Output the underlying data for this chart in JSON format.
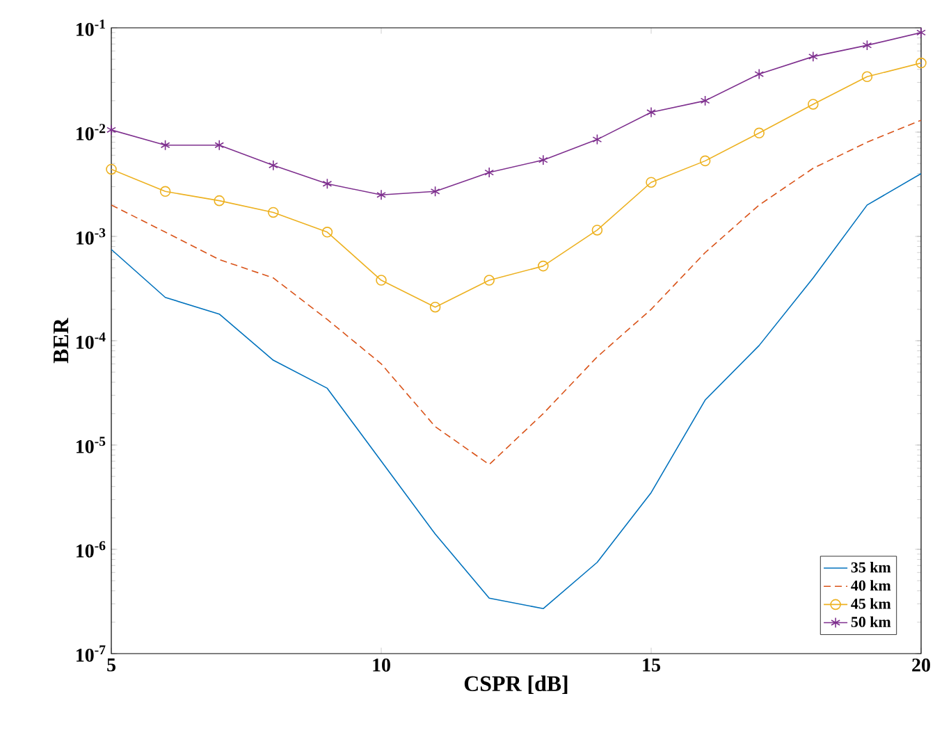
{
  "chart_data": {
    "type": "line",
    "xlabel": "CSPR [dB]",
    "ylabel": "BER",
    "log": "y",
    "legend": "bottom right",
    "grid": false,
    "x": [
      5,
      6,
      7,
      8,
      9,
      10,
      11,
      12,
      13,
      14,
      15,
      16,
      17,
      18,
      19,
      20
    ],
    "xlim": [
      5,
      20
    ],
    "xticks": [
      5,
      10,
      15,
      20
    ],
    "ylim": [
      1e-07,
      0.1
    ],
    "yticks": [
      {
        "value": 1e-07,
        "label": "10$^{-7}$"
      },
      {
        "value": 1e-06,
        "label": "10$^{-6}$"
      },
      {
        "value": 1e-05,
        "label": "10$^{-5}$"
      },
      {
        "value": 0.0001,
        "label": "10$^{-4}$"
      },
      {
        "value": 0.001,
        "label": "10$^{-3}$"
      },
      {
        "value": 0.01,
        "label": "10$^{-2}$"
      },
      {
        "value": 0.1,
        "label": "10$^{-1}$"
      }
    ],
    "series": [
      {
        "name": "35 km",
        "color": "#0072bd",
        "line_style": "solid",
        "marker": "none",
        "values": [
          0.00075,
          0.00026,
          0.00018,
          6.5e-05,
          3.5e-05,
          7e-06,
          1.4e-06,
          3.4e-07,
          2.7e-07,
          7.5e-07,
          3.5e-06,
          2.7e-05,
          9e-05,
          0.0004,
          0.002,
          0.004
        ]
      },
      {
        "name": "40 km",
        "color": "#d95319",
        "line_style": "dashed",
        "marker": "none",
        "values": [
          0.002,
          0.0011,
          0.0006,
          0.0004,
          0.00016,
          6e-05,
          1.5e-05,
          6.5e-06,
          2e-05,
          7e-05,
          0.0002,
          0.0007,
          0.002,
          0.0045,
          0.008,
          0.013
        ]
      },
      {
        "name": "45 km",
        "color": "#edb120",
        "line_style": "solid",
        "marker": "circle",
        "values": [
          0.0044,
          0.0027,
          0.0022,
          0.0017,
          0.0011,
          0.00038,
          0.00021,
          0.00038,
          0.00052,
          0.00115,
          0.0033,
          0.0053,
          0.0098,
          0.0185,
          0.034,
          0.046
        ]
      },
      {
        "name": "50 km",
        "color": "#7e2f8e",
        "line_style": "solid",
        "marker": "cross",
        "values": [
          0.0105,
          0.0075,
          0.0075,
          0.0048,
          0.0032,
          0.0025,
          0.0027,
          0.0041,
          0.0054,
          0.0085,
          0.0155,
          0.02,
          0.036,
          0.053,
          0.068,
          0.09
        ]
      }
    ]
  }
}
